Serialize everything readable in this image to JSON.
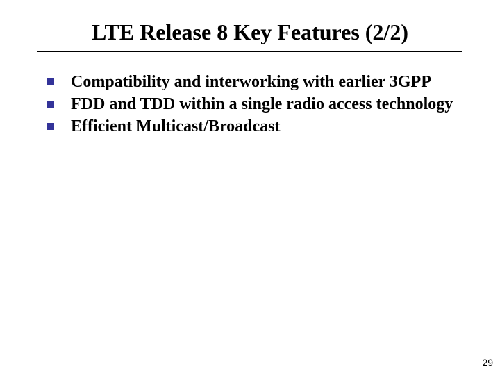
{
  "slide": {
    "title": "LTE Release 8 Key Features (2/2)",
    "bullets": [
      "Compatibility and interworking with earlier 3GPP",
      "FDD and TDD within a single radio access technology",
      "Efficient Multicast/Broadcast"
    ],
    "page_number": "29",
    "colors": {
      "bullet_marker": "#333399",
      "text": "#000000",
      "background": "#ffffff",
      "divider": "#000000"
    },
    "typography": {
      "title_fontsize": 32,
      "title_weight": "bold",
      "bullet_fontsize": 24,
      "bullet_weight": "bold",
      "font_family": "Times New Roman"
    }
  }
}
